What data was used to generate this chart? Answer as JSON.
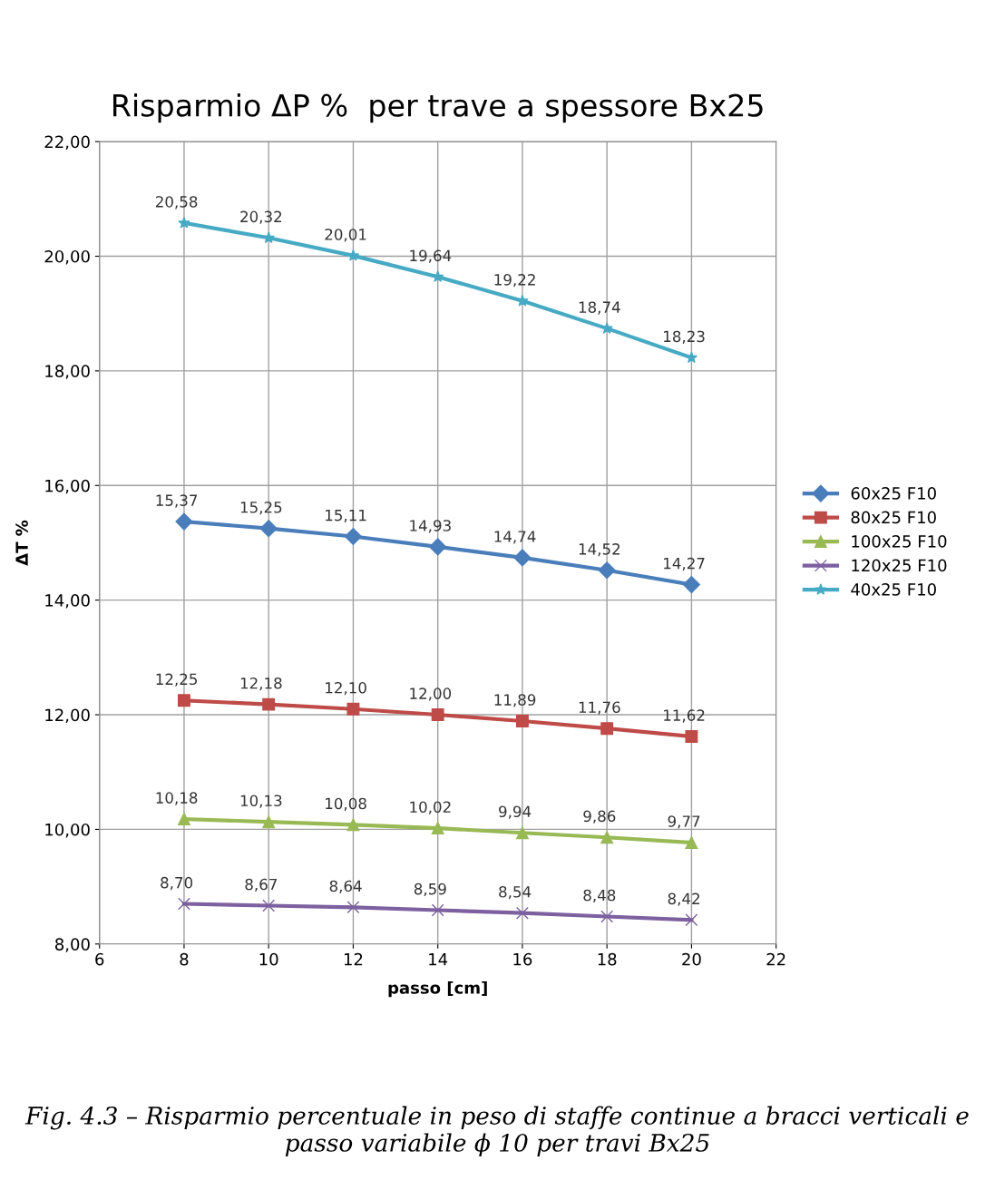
{
  "chart_data": {
    "type": "line",
    "title": "Risparmio ΔP %  per trave a spessore Bx25",
    "xlabel": "passo [cm]",
    "ylabel": "ΔT %",
    "x": [
      8,
      10,
      12,
      14,
      16,
      18,
      20
    ],
    "series": [
      {
        "name": "60x25 F10",
        "color": "#4a7ebb",
        "marker": "diamond",
        "values": [
          15.37,
          15.25,
          15.11,
          14.93,
          14.74,
          14.52,
          14.27
        ],
        "value_labels": [
          "15,37",
          "15,25",
          "15,11",
          "14,93",
          "14,74",
          "14,52",
          "14,27"
        ]
      },
      {
        "name": "80x25 F10",
        "color": "#be4b48",
        "marker": "square",
        "values": [
          12.25,
          12.18,
          12.1,
          12.0,
          11.89,
          11.76,
          11.62
        ],
        "value_labels": [
          "12,25",
          "12,18",
          "12,10",
          "12,00",
          "11,89",
          "11,76",
          "11,62"
        ]
      },
      {
        "name": "100x25 F10",
        "color": "#98b954",
        "marker": "triangle",
        "values": [
          10.18,
          10.13,
          10.08,
          10.02,
          9.94,
          9.86,
          9.77
        ],
        "value_labels": [
          "10,18",
          "10,13",
          "10,08",
          "10,02",
          "9,94",
          "9,86",
          "9,77"
        ]
      },
      {
        "name": "120x25 F10",
        "color": "#7d60a0",
        "marker": "cross",
        "values": [
          8.7,
          8.67,
          8.64,
          8.59,
          8.54,
          8.48,
          8.42
        ],
        "value_labels": [
          "8,70",
          "8,67",
          "8,64",
          "8,59",
          "8,54",
          "8,48",
          "8,42"
        ]
      },
      {
        "name": "40x25 F10",
        "color": "#46aac5",
        "marker": "star",
        "values": [
          20.58,
          20.32,
          20.01,
          19.64,
          19.22,
          18.74,
          18.23
        ],
        "value_labels": [
          "20,58",
          "20,32",
          "20,01",
          "19,64",
          "19,22",
          "18,74",
          "18,23"
        ]
      }
    ],
    "xlim": [
      6,
      22
    ],
    "xticks": [
      6,
      8,
      10,
      12,
      14,
      16,
      18,
      20,
      22
    ],
    "ylim": [
      8,
      22
    ],
    "yticks": [
      {
        "value": 8,
        "label": "8,00"
      },
      {
        "value": 10,
        "label": "10,00"
      },
      {
        "value": 12,
        "label": "12,00"
      },
      {
        "value": 14,
        "label": "14,00"
      },
      {
        "value": 16,
        "label": "16,00"
      },
      {
        "value": 18,
        "label": "18,00"
      },
      {
        "value": 20,
        "label": "20,00"
      },
      {
        "value": 22,
        "label": "22,00"
      }
    ],
    "grid": true,
    "legend": "right",
    "annotations": [
      "Fig. 4.3 – Risparmio percentuale in peso di staffe continue a bracci verticali e passo variabile ϕ 10 per travi Bx25"
    ]
  }
}
